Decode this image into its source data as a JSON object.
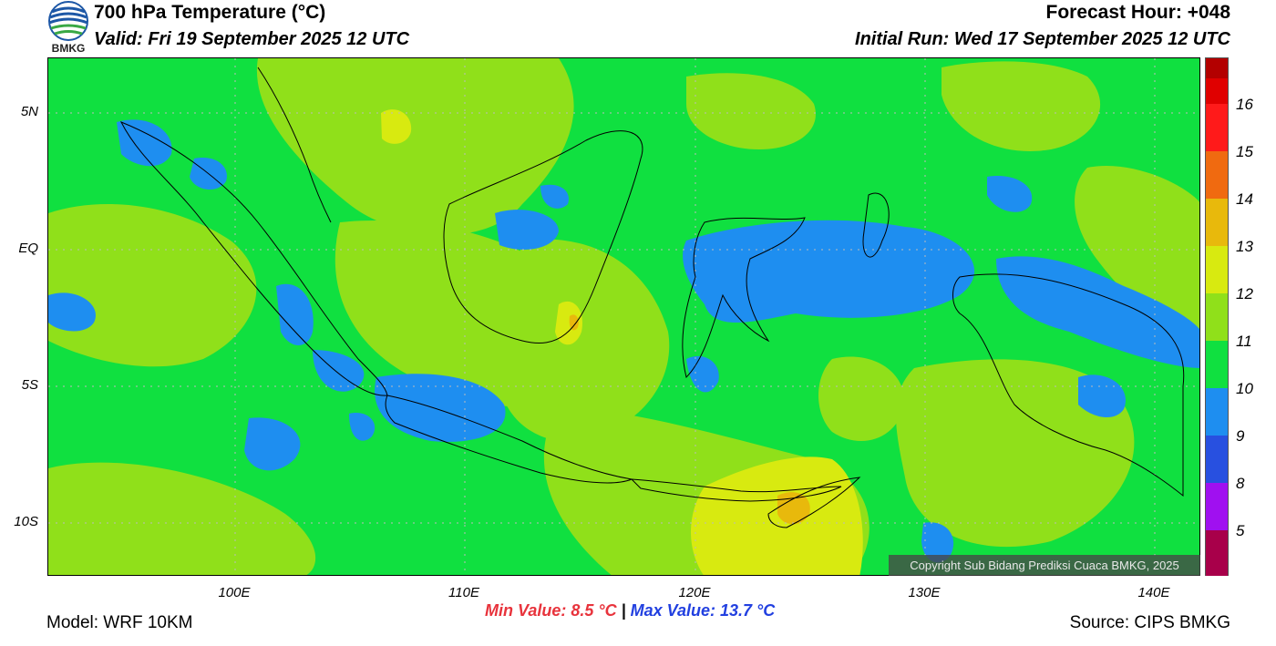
{
  "header": {
    "title": "700 hPa Temperature (°C)",
    "valid": "Valid: Fri 19 September 2025 12 UTC",
    "forecast_hour": "Forecast Hour: +048",
    "initial_run": "Initial Run: Wed 17 September 2025 12 UTC",
    "logo_text": "BMKG"
  },
  "axes": {
    "lat_labels": [
      "5N",
      "EQ",
      "5S",
      "10S"
    ],
    "lon_labels": [
      "100E",
      "110E",
      "120E",
      "130E",
      "140E"
    ]
  },
  "colorbar": {
    "labels": [
      "16",
      "15",
      "14",
      "13",
      "12",
      "11",
      "10",
      "9",
      "8",
      "5"
    ],
    "colors": [
      "#b30000",
      "#e00000",
      "#ff1a1a",
      "#f06a10",
      "#e8b90c",
      "#d8ea10",
      "#90e01a",
      "#10e040",
      "#1e8ef0",
      "#2850e0",
      "#a010f0",
      "#a8004a"
    ]
  },
  "map_colors": {
    "base": "#10e040",
    "warm": "#90e01a",
    "warmer": "#d8ea10",
    "hot": "#e8b90c",
    "cool": "#1e8ef0",
    "grid": "#bbbbbb"
  },
  "copyright": "Copyright Sub Bidang Prediksi Cuaca BMKG, 2025",
  "footer": {
    "model": "Model: WRF 10KM",
    "source": "Source: CIPS BMKG",
    "min_value": "Min Value: 8.5 °C",
    "separator": "|",
    "max_value": "Max Value: 13.7 °C"
  }
}
